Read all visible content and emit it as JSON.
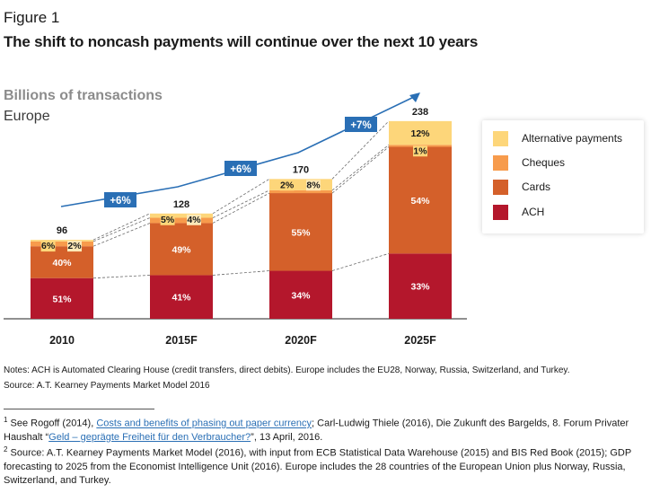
{
  "figure_label": "Figure 1",
  "title": "The shift to noncash payments will continue over the next 10 years",
  "unit_label": "Billions of transactions",
  "region_label": "Europe",
  "legend": [
    {
      "name": "Alternative payments",
      "color": "#fdd67a"
    },
    {
      "name": "Cheques",
      "color": "#f79b4c"
    },
    {
      "name": "Cards",
      "color": "#d4602a"
    },
    {
      "name": "ACH",
      "color": "#b4172c"
    }
  ],
  "chart_data": {
    "type": "bar",
    "stacked": true,
    "categories": [
      "2010",
      "2015F",
      "2020F",
      "2025F"
    ],
    "totals": [
      96,
      128,
      170,
      238
    ],
    "total_labels": [
      "96",
      "128",
      "170",
      "238"
    ],
    "ylim": [
      0,
      240
    ],
    "series": [
      {
        "name": "ACH",
        "color": "#b4172c",
        "percent": [
          51,
          41,
          34,
          33
        ],
        "labels": [
          "51%",
          "41%",
          "34%",
          "33%"
        ]
      },
      {
        "name": "Cards",
        "color": "#d4602a",
        "percent": [
          40,
          49,
          55,
          54
        ],
        "labels": [
          "40%",
          "49%",
          "55%",
          "54%"
        ]
      },
      {
        "name": "Cheques",
        "color": "#f79b4c",
        "percent": [
          6,
          5,
          2,
          1
        ],
        "labels": [
          "6%",
          "5%",
          "2%",
          "1%"
        ]
      },
      {
        "name": "Alternative payments",
        "color": "#fdd67a",
        "percent": [
          2,
          4,
          8,
          12
        ],
        "labels": [
          "2%",
          "4%",
          "8%",
          "12%"
        ]
      }
    ],
    "growth_labels": [
      "+6%",
      "+6%",
      "+7%"
    ],
    "growth_color": "#2a6fb5"
  },
  "notes": {
    "line1": "Notes: ACH is Automated Clearing House (credit transfers, direct debits). Europe includes the EU28, Norway, Russia, Switzerland, and Turkey.",
    "line2": "Source: A.T. Kearney Payments Market Model 2016"
  },
  "footnotes": {
    "f1_num": "1",
    "f1_a": "See Rogoff (2014), ",
    "f1_link1": "Costs and benefits of phasing out paper currency",
    "f1_b": "; Carl-Ludwig Thiele (2016), Die Zukunft des Bargelds, 8. Forum Privater Haushalt “",
    "f1_link2": "Geld – geprägte Freiheit für den Verbraucher?",
    "f1_c": "”, 13 April, 2016.",
    "f2_num": "2",
    "f2_text": "Source: A.T. Kearney Payments Market Model (2016), with input from ECB Statistical Data Warehouse (2015) and BIS Red Book (2015); GDP forecasting to 2025 from the Economist Intelligence Unit (2016). Europe includes the 28 countries of the European Union plus Norway, Russia, Switzerland, and Turkey."
  }
}
